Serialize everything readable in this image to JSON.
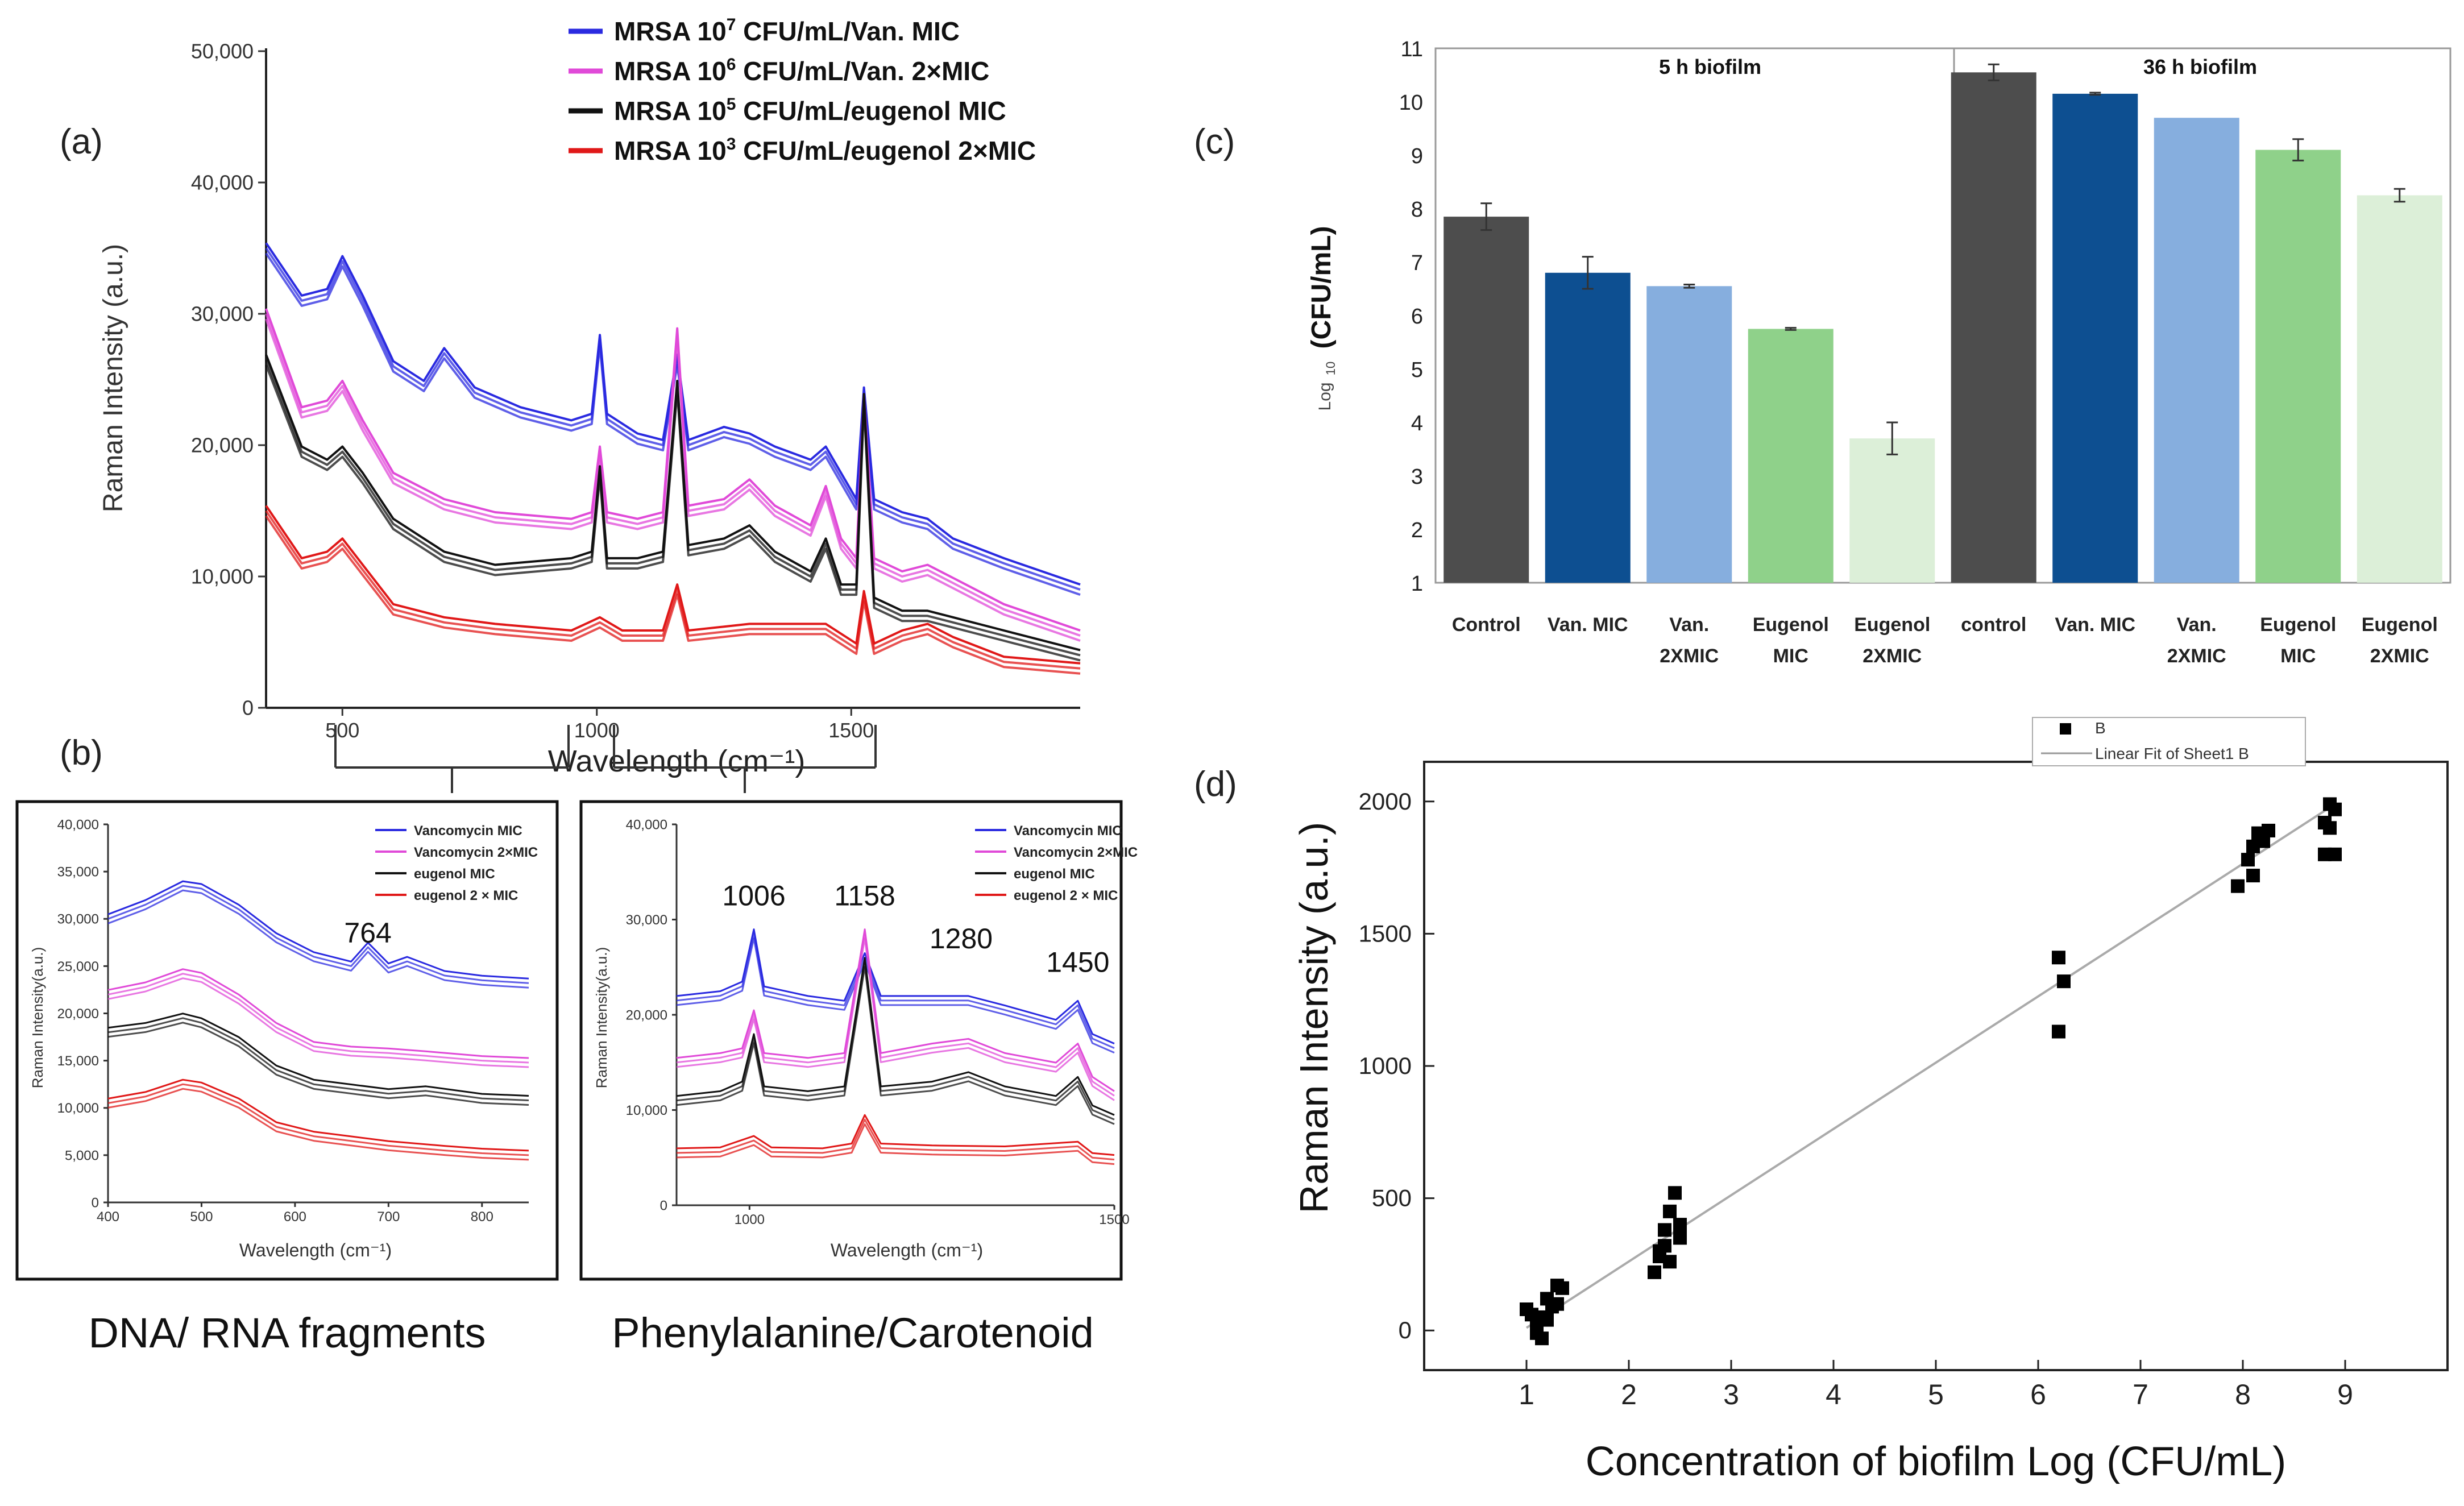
{
  "chart_data": [
    {
      "id": "a",
      "panel_label": "(a)",
      "type": "line",
      "title": "",
      "xlabel": "Wavelength (cm⁻¹)",
      "ylabel": "Raman Intensity (a.u.)",
      "xlim": [
        350,
        1950
      ],
      "ylim": [
        0,
        50000
      ],
      "x_ticks": [
        "500",
        "1000",
        "1500"
      ],
      "x_tick_values": [
        500,
        1000,
        1500
      ],
      "y_ticks": [
        "0",
        "10,000",
        "20,000",
        "30,000",
        "40,000",
        "50,000"
      ],
      "y_tick_values": [
        0,
        10000,
        20000,
        30000,
        40000,
        50000
      ],
      "legend": [
        {
          "prefix": "MRSA 10",
          "sup": "7",
          "suffix": " CFU/mL/Van.  MIC",
          "color": "#2a2ae0"
        },
        {
          "prefix": "MRSA 10",
          "sup": "6",
          "suffix": " CFU/mL/Van.  2×MIC",
          "color": "#e04ad8"
        },
        {
          "prefix": "MRSA 10",
          "sup": "5",
          "suffix": " CFU/mL/eugenol  MIC",
          "color": "#111111"
        },
        {
          "prefix": "MRSA 10",
          "sup": "3",
          "suffix": " CFU/mL/eugenol  2×MIC",
          "color": "#e01818"
        }
      ],
      "series": [
        {
          "name": "MRSA 10^7 CFU/mL/Van. MIC",
          "color": "#2a2ae0",
          "x": [
            350,
            420,
            470,
            500,
            540,
            600,
            660,
            700,
            760,
            850,
            950,
            990,
            1006,
            1020,
            1080,
            1130,
            1158,
            1180,
            1250,
            1300,
            1350,
            1420,
            1450,
            1480,
            1510,
            1525,
            1545,
            1600,
            1650,
            1700,
            1800,
            1950
          ],
          "y": [
            35000,
            31000,
            31500,
            34000,
            31000,
            26000,
            24500,
            27000,
            24000,
            22500,
            21500,
            22000,
            28000,
            22000,
            20500,
            20000,
            26500,
            20000,
            21000,
            20500,
            19500,
            18500,
            19500,
            17500,
            15500,
            24000,
            15500,
            14500,
            14000,
            12500,
            11000,
            9000
          ]
        },
        {
          "name": "MRSA 10^6 CFU/mL/Van. 2×MIC",
          "color": "#e04ad8",
          "x": [
            350,
            420,
            470,
            500,
            540,
            600,
            700,
            800,
            950,
            990,
            1006,
            1020,
            1080,
            1130,
            1158,
            1180,
            1250,
            1300,
            1350,
            1420,
            1450,
            1480,
            1510,
            1525,
            1545,
            1600,
            1650,
            1700,
            1800,
            1950
          ],
          "y": [
            30000,
            22500,
            23000,
            24500,
            21500,
            17500,
            15500,
            14500,
            14000,
            14500,
            19500,
            14500,
            14000,
            14500,
            28500,
            15000,
            15500,
            17000,
            15000,
            13500,
            16500,
            12500,
            11000,
            23500,
            11000,
            10000,
            10500,
            9500,
            7500,
            5500
          ]
        },
        {
          "name": "MRSA 10^5 CFU/mL/eugenol MIC",
          "color": "#111111",
          "x": [
            350,
            420,
            470,
            500,
            540,
            600,
            700,
            800,
            950,
            990,
            1006,
            1020,
            1080,
            1130,
            1158,
            1180,
            1250,
            1300,
            1350,
            1420,
            1450,
            1480,
            1510,
            1525,
            1545,
            1600,
            1650,
            1700,
            1800,
            1950
          ],
          "y": [
            26500,
            19500,
            18500,
            19500,
            17500,
            14000,
            11500,
            10500,
            11000,
            11500,
            18000,
            11000,
            11000,
            11500,
            24500,
            12000,
            12500,
            13500,
            11500,
            10000,
            12500,
            9000,
            9000,
            23500,
            8000,
            7000,
            7000,
            6500,
            5500,
            4000
          ]
        },
        {
          "name": "MRSA 10^3 CFU/mL/eugenol 2×MIC",
          "color": "#e01818",
          "x": [
            350,
            420,
            470,
            500,
            540,
            600,
            700,
            800,
            950,
            1006,
            1050,
            1130,
            1158,
            1180,
            1300,
            1450,
            1510,
            1525,
            1545,
            1600,
            1650,
            1700,
            1800,
            1950
          ],
          "y": [
            15000,
            11000,
            11500,
            12500,
            10500,
            7500,
            6500,
            6000,
            5500,
            6500,
            5500,
            5500,
            9000,
            5500,
            6000,
            6000,
            4500,
            8500,
            4500,
            5500,
            6000,
            5000,
            3500,
            3000
          ]
        }
      ]
    },
    {
      "id": "b-left",
      "panel_label": "(b)",
      "type": "line",
      "title": "",
      "caption": "DNA/ RNA fragments",
      "xlabel": "Wavelength (cm⁻¹)",
      "ylabel": "Raman Intensity(a.u.)",
      "xlim": [
        400,
        850
      ],
      "ylim": [
        0,
        40000
      ],
      "x_ticks": [
        "400",
        "500",
        "600",
        "700",
        "800"
      ],
      "x_tick_values": [
        400,
        500,
        600,
        700,
        800
      ],
      "y_ticks": [
        "0",
        "5,000",
        "10,000",
        "15,000",
        "20,000",
        "25,000",
        "30,000",
        "35,000",
        "40,000"
      ],
      "y_tick_values": [
        0,
        5000,
        10000,
        15000,
        20000,
        25000,
        30000,
        35000,
        40000
      ],
      "legend": [
        {
          "label": "Vancomycin MIC",
          "color": "#2a2ae0"
        },
        {
          "label": "Vancomycin 2×MIC",
          "color": "#e04ad8"
        },
        {
          "label": "eugenol MIC",
          "color": "#111111"
        },
        {
          "label": "eugenol 2 × MIC",
          "color": "#e01818"
        }
      ],
      "annotations": [
        {
          "text": "764",
          "x": 678,
          "y": 27500
        }
      ],
      "series": [
        {
          "name": "Vancomycin MIC",
          "color": "#2a2ae0",
          "x": [
            400,
            440,
            480,
            500,
            540,
            580,
            620,
            660,
            678,
            700,
            720,
            760,
            800,
            850
          ],
          "y": [
            30000,
            31500,
            33500,
            33200,
            31000,
            28000,
            26000,
            25000,
            27000,
            24800,
            25500,
            24000,
            23500,
            23200
          ]
        },
        {
          "name": "Vancomycin 2×MIC",
          "color": "#e04ad8",
          "x": [
            400,
            440,
            480,
            500,
            540,
            580,
            620,
            660,
            700,
            740,
            800,
            850
          ],
          "y": [
            22000,
            22800,
            24200,
            23800,
            21500,
            18500,
            16500,
            16000,
            15800,
            15500,
            15000,
            14800
          ]
        },
        {
          "name": "eugenol MIC",
          "color": "#111111",
          "x": [
            400,
            440,
            480,
            500,
            540,
            580,
            620,
            660,
            700,
            740,
            800,
            850
          ],
          "y": [
            18000,
            18500,
            19500,
            19000,
            17000,
            14000,
            12500,
            12000,
            11500,
            11800,
            11000,
            10800
          ]
        },
        {
          "name": "eugenol 2 × MIC",
          "color": "#e01818",
          "x": [
            400,
            440,
            480,
            500,
            540,
            580,
            620,
            660,
            700,
            760,
            800,
            850
          ],
          "y": [
            10500,
            11200,
            12500,
            12200,
            10500,
            8000,
            7000,
            6500,
            6000,
            5500,
            5200,
            5000
          ]
        }
      ]
    },
    {
      "id": "b-right",
      "panel_label": "",
      "type": "line",
      "title": "",
      "caption": "Phenylalanine/Carotenoid",
      "xlabel": "Wavelength (cm⁻¹)",
      "ylabel": "Raman Intensity(a.u.)",
      "xlim": [
        900,
        1500
      ],
      "ylim": [
        0,
        40000
      ],
      "x_ticks": [
        "1000",
        "1500"
      ],
      "x_tick_values": [
        1000,
        1500
      ],
      "y_ticks": [
        "0",
        "10,000",
        "20,000",
        "30,000",
        "40,000"
      ],
      "y_tick_values": [
        0,
        10000,
        20000,
        30000,
        40000
      ],
      "legend": [
        {
          "label": "Vancomycin MIC",
          "color": "#2a2ae0"
        },
        {
          "label": "Vancomycin 2×MIC",
          "color": "#e04ad8"
        },
        {
          "label": "eugenol MIC",
          "color": "#111111"
        },
        {
          "label": "eugenol 2 × MIC",
          "color": "#e01818"
        }
      ],
      "annotations": [
        {
          "text": "1006",
          "x": 1006,
          "y": 31500
        },
        {
          "text": "1158",
          "x": 1158,
          "y": 31500
        },
        {
          "text": "1280",
          "x": 1290,
          "y": 27000
        },
        {
          "text": "1450",
          "x": 1450,
          "y": 24500
        }
      ],
      "series": [
        {
          "name": "Vancomycin MIC",
          "color": "#2a2ae0",
          "x": [
            900,
            960,
            990,
            1006,
            1020,
            1080,
            1130,
            1158,
            1180,
            1250,
            1300,
            1350,
            1420,
            1450,
            1470,
            1500
          ],
          "y": [
            21500,
            22000,
            23000,
            28500,
            22500,
            21500,
            21000,
            26000,
            21500,
            21500,
            21500,
            20500,
            19000,
            21000,
            17500,
            16500
          ]
        },
        {
          "name": "Vancomycin 2×MIC",
          "color": "#e04ad8",
          "x": [
            900,
            960,
            990,
            1006,
            1020,
            1080,
            1130,
            1158,
            1180,
            1250,
            1300,
            1350,
            1420,
            1450,
            1470,
            1500
          ],
          "y": [
            15000,
            15500,
            16000,
            20000,
            15500,
            15000,
            15500,
            28500,
            15500,
            16500,
            17000,
            15500,
            14500,
            16500,
            13000,
            11500
          ]
        },
        {
          "name": "eugenol MIC",
          "color": "#111111",
          "x": [
            900,
            960,
            990,
            1006,
            1020,
            1080,
            1130,
            1158,
            1180,
            1250,
            1300,
            1350,
            1420,
            1450,
            1470,
            1500
          ],
          "y": [
            11000,
            11500,
            12500,
            17500,
            12000,
            11500,
            12000,
            25500,
            12000,
            12500,
            13500,
            12000,
            11000,
            13000,
            10000,
            9000
          ]
        },
        {
          "name": "eugenol 2 × MIC",
          "color": "#e01818",
          "x": [
            900,
            960,
            1006,
            1030,
            1100,
            1140,
            1158,
            1180,
            1250,
            1350,
            1450,
            1470,
            1500
          ],
          "y": [
            5500,
            5600,
            6800,
            5600,
            5500,
            6000,
            9000,
            6000,
            5800,
            5700,
            6200,
            5000,
            4800
          ]
        }
      ]
    },
    {
      "id": "c",
      "panel_label": "(c)",
      "type": "bar",
      "title": "",
      "xlabel": "",
      "ylabel_prefix": "Log",
      "ylabel_sub": "10",
      "ylabel_main": "(CFU/mL)",
      "ylim": [
        1,
        11
      ],
      "y_ticks": [
        "1",
        "2",
        "3",
        "4",
        "5",
        "6",
        "7",
        "8",
        "9",
        "10",
        "11"
      ],
      "y_tick_values": [
        1,
        2,
        3,
        4,
        5,
        6,
        7,
        8,
        9,
        10,
        11
      ],
      "group_labels": [
        "5 h biofilm",
        "36 h biofilm"
      ],
      "categories": [
        {
          "line1": "Control",
          "line2": ""
        },
        {
          "line1": "Van. MIC",
          "line2": ""
        },
        {
          "line1": "Van.",
          "line2": "2XMIC"
        },
        {
          "line1": "Eugenol",
          "line2": "MIC"
        },
        {
          "line1": "Eugenol",
          "line2": "2XMIC"
        },
        {
          "line1": "control",
          "line2": ""
        },
        {
          "line1": "Van. MIC",
          "line2": ""
        },
        {
          "line1": "Van.",
          "line2": "2XMIC"
        },
        {
          "line1": "Eugenol",
          "line2": "MIC"
        },
        {
          "line1": "Eugenol",
          "line2": "2XMIC"
        }
      ],
      "values": [
        7.85,
        6.8,
        6.55,
        5.75,
        3.7,
        10.55,
        10.15,
        9.7,
        9.1,
        8.25
      ],
      "errors": [
        0.25,
        0.3,
        0.03,
        0.02,
        0.3,
        0.15,
        0.02,
        0.0,
        0.2,
        0.12
      ],
      "colors": [
        "#4d4d4d",
        "#0d4f91",
        "#86aede",
        "#8fd18a",
        "#dcefd8",
        "#4d4d4d",
        "#0d4f91",
        "#86aede",
        "#8fd18a",
        "#dcefd8"
      ]
    },
    {
      "id": "d",
      "panel_label": "(d)",
      "type": "scatter",
      "title": "",
      "xlabel": "Concentration of biofilm Log (CFU/mL)",
      "ylabel": "Raman Intensity (a.u.)",
      "xlim": [
        0,
        10
      ],
      "ylim": [
        -150,
        2150
      ],
      "x_ticks": [
        "1",
        "2",
        "3",
        "4",
        "5",
        "6",
        "7",
        "8",
        "9"
      ],
      "x_tick_values": [
        1,
        2,
        3,
        4,
        5,
        6,
        7,
        8,
        9
      ],
      "y_ticks": [
        "0",
        "500",
        "1000",
        "1500",
        "2000"
      ],
      "y_tick_values": [
        0,
        500,
        1000,
        1500,
        2000
      ],
      "legend": [
        {
          "label": "B",
          "kind": "marker"
        },
        {
          "label": "Linear Fit of Sheet1 B",
          "kind": "line"
        }
      ],
      "fit": {
        "x": [
          1.0,
          8.9
        ],
        "y": [
          10,
          1990
        ]
      },
      "points": {
        "x": [
          1.0,
          1.05,
          1.1,
          1.15,
          1.2,
          1.25,
          1.3,
          1.35,
          1.1,
          1.2,
          1.3,
          1.15,
          2.25,
          2.3,
          2.35,
          2.4,
          2.45,
          2.5,
          2.3,
          2.4,
          2.5,
          2.35,
          6.2,
          6.25,
          6.2,
          7.95,
          8.05,
          8.1,
          8.2,
          8.25,
          8.1,
          8.15,
          8.8,
          8.85,
          8.9,
          8.85,
          8.8,
          8.9
        ],
        "y": [
          80,
          60,
          20,
          -30,
          120,
          90,
          170,
          160,
          -10,
          40,
          100,
          50,
          220,
          300,
          380,
          450,
          520,
          350,
          280,
          260,
          400,
          320,
          1410,
          1320,
          1130,
          1680,
          1780,
          1830,
          1850,
          1890,
          1720,
          1880,
          1800,
          1900,
          1970,
          1990,
          1920,
          1800
        ]
      }
    }
  ]
}
